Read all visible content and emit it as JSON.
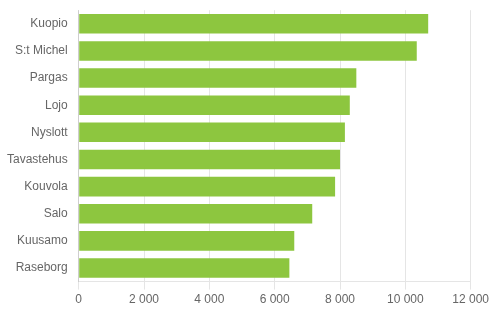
{
  "chart_data": {
    "type": "bar",
    "orientation": "horizontal",
    "categories": [
      "Kuopio",
      "S:t Michel",
      "Pargas",
      "Lojo",
      "Nyslott",
      "Tavastehus",
      "Kouvola",
      "Salo",
      "Kuusamo",
      "Raseborg"
    ],
    "values": [
      10700,
      10350,
      8500,
      8300,
      8150,
      8000,
      7850,
      7150,
      6600,
      6450
    ],
    "color": "#8dc63f",
    "xlim": [
      0,
      12000
    ],
    "xticks": [
      0,
      {
        "value": 2000,
        "label": "2 000"
      },
      {
        "value": 4000,
        "label": "4 000"
      },
      {
        "value": 6000,
        "label": "6 000"
      },
      {
        "value": 8000,
        "label": "8 000"
      },
      {
        "value": 10000,
        "label": "10 000"
      },
      {
        "value": 12000,
        "label": "12 000"
      }
    ],
    "grid": true
  }
}
